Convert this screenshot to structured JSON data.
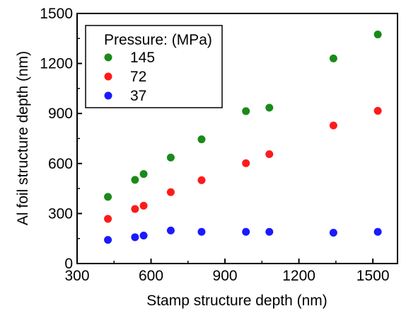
{
  "chart_data": {
    "type": "scatter",
    "title": "",
    "xlabel": "Stamp structure depth (nm)",
    "ylabel": "Al foil structure depth (nm)",
    "xlim": [
      300,
      1600
    ],
    "ylim": [
      0,
      1500
    ],
    "xticks": [
      300,
      600,
      900,
      1200,
      1500
    ],
    "yticks": [
      0,
      300,
      600,
      900,
      1200,
      1500
    ],
    "xtick_labels": [
      "300",
      "600",
      "900",
      "1200",
      "1500"
    ],
    "ytick_labels": [
      "0",
      "300",
      "600",
      "900",
      "1200",
      "1500"
    ],
    "grid": false,
    "legend": {
      "title": "Pressure: (MPa)",
      "placement": "top-left"
    },
    "series": [
      {
        "name": "145",
        "color": "#1a8a1a",
        "points": [
          [
            425,
            400
          ],
          [
            535,
            502
          ],
          [
            570,
            537
          ],
          [
            680,
            636
          ],
          [
            805,
            745
          ],
          [
            985,
            914
          ],
          [
            1080,
            935
          ],
          [
            1340,
            1230
          ],
          [
            1520,
            1374
          ]
        ]
      },
      {
        "name": "72",
        "color": "#ff1a1a",
        "points": [
          [
            425,
            268
          ],
          [
            535,
            327
          ],
          [
            570,
            347
          ],
          [
            680,
            428
          ],
          [
            805,
            500
          ],
          [
            985,
            602
          ],
          [
            1080,
            656
          ],
          [
            1340,
            828
          ],
          [
            1520,
            916
          ]
        ]
      },
      {
        "name": "37",
        "color": "#1a1aff",
        "points": [
          [
            425,
            142
          ],
          [
            535,
            158
          ],
          [
            570,
            168
          ],
          [
            680,
            198
          ],
          [
            805,
            190
          ],
          [
            985,
            190
          ],
          [
            1080,
            190
          ],
          [
            1340,
            185
          ],
          [
            1520,
            190
          ]
        ]
      }
    ]
  }
}
